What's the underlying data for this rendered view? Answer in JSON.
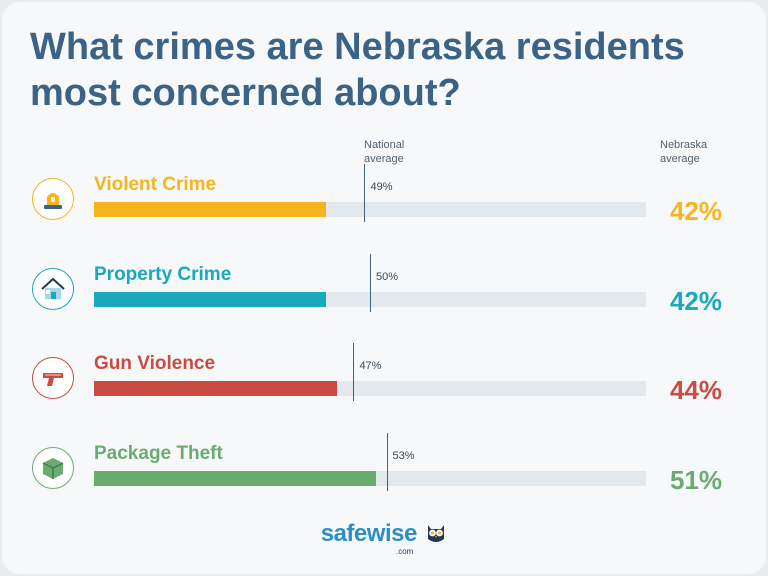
{
  "title": "What crimes are Nebraska residents most concerned about?",
  "columns": {
    "national": "National average",
    "nebraska": "Nebraska average"
  },
  "logo": {
    "main": "safewise",
    "sub": ".com"
  },
  "chart_data": {
    "type": "bar",
    "orientation": "horizontal",
    "title": "What crimes are Nebraska residents most concerned about?",
    "xlim": [
      0,
      100
    ],
    "categories": [
      "Violent Crime",
      "Property Crime",
      "Gun Violence",
      "Package Theft"
    ],
    "series": [
      {
        "name": "Nebraska average",
        "values": [
          42,
          42,
          44,
          51
        ]
      },
      {
        "name": "National average",
        "values": [
          49,
          50,
          47,
          53
        ]
      }
    ],
    "rows": [
      {
        "label": "Violent Crime",
        "value": 42,
        "value_label": "42%",
        "national": 49,
        "national_label": "49%",
        "color": "#f5b51e",
        "icon": "siren-icon"
      },
      {
        "label": "Property Crime",
        "value": 42,
        "value_label": "42%",
        "national": 50,
        "national_label": "50%",
        "color": "#1aa8bd",
        "icon": "house-icon"
      },
      {
        "label": "Gun Violence",
        "value": 44,
        "value_label": "44%",
        "national": 47,
        "national_label": "47%",
        "color": "#c94b41",
        "icon": "gun-icon"
      },
      {
        "label": "Package Theft",
        "value": 51,
        "value_label": "51%",
        "national": 53,
        "national_label": "53%",
        "color": "#6aac70",
        "icon": "package-icon"
      }
    ]
  }
}
